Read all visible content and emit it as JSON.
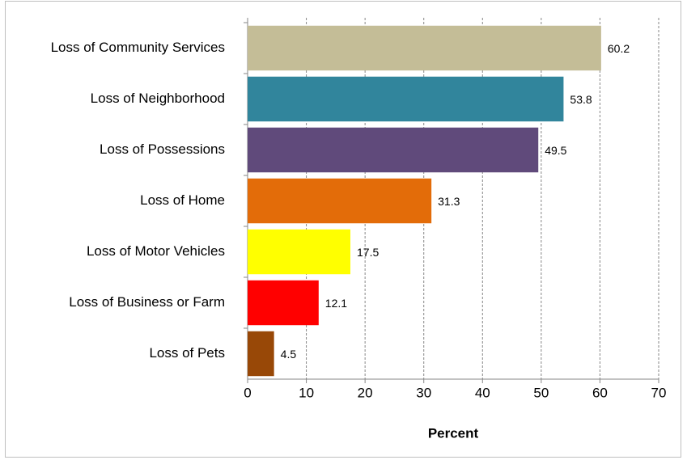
{
  "chart_data": {
    "type": "barh",
    "categories": [
      "Loss of Community Services",
      "Loss of Neighborhood",
      "Loss of Possessions",
      "Loss of Home",
      "Loss of Motor Vehicles",
      "Loss of Business or Farm",
      "Loss of Pets"
    ],
    "values": [
      60.2,
      53.8,
      49.5,
      31.3,
      17.5,
      12.1,
      4.5
    ],
    "colors": [
      "#C4BD97",
      "#31859C",
      "#604A7B",
      "#E36C09",
      "#FFFF00",
      "#FF0000",
      "#984807"
    ],
    "x_label": "Percent",
    "xlim": [
      0,
      70
    ],
    "xticks": [
      0,
      10,
      20,
      30,
      40,
      50,
      60,
      70
    ],
    "grid": true
  }
}
